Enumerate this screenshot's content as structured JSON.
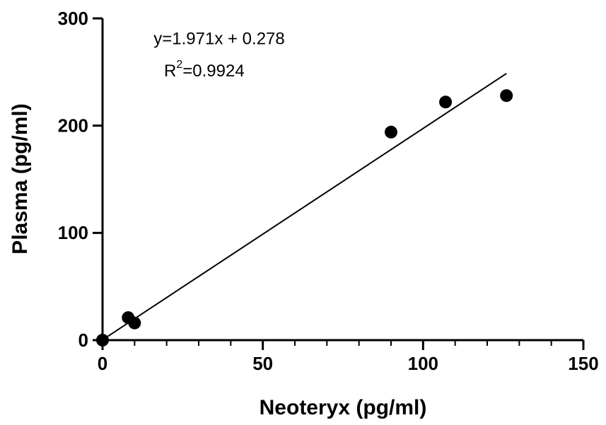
{
  "chart_data": {
    "type": "scatter",
    "xlabel": "Neoteryx (pg/ml)",
    "ylabel": "Plasma (pg/ml)",
    "equation": "y=1.971x + 0.278",
    "r_squared": {
      "base": "R",
      "superscript": "2",
      "value": "=0.9924"
    },
    "series": [
      {
        "color": "#000000",
        "x": [
          0,
          8,
          10,
          90,
          107,
          126
        ],
        "values": [
          0,
          21,
          16,
          194,
          222,
          228
        ]
      }
    ],
    "fit_line": {
      "slope": 1.971,
      "intercept": 0.278,
      "x": [
        0,
        126
      ],
      "color": "#000000"
    },
    "xlim": [
      0,
      150
    ],
    "xticks": [
      0,
      50,
      100,
      150
    ],
    "xminorticks": [
      10,
      20,
      30,
      40,
      60,
      70,
      80,
      90,
      110,
      120,
      130,
      140
    ],
    "ylim": [
      0,
      300
    ],
    "yticks": [
      0,
      100,
      200,
      300
    ]
  }
}
